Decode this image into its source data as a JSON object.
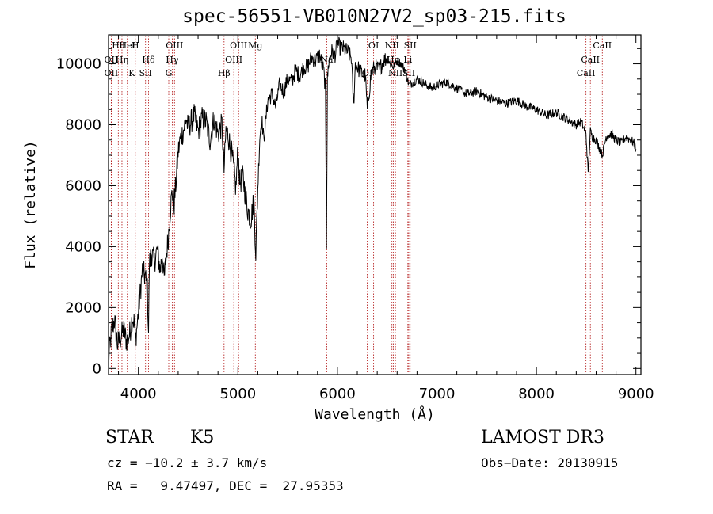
{
  "chart_data": {
    "type": "line",
    "title": "spec-56551-VB010N27V2_sp03-215.fits",
    "xlabel": "Wavelength (Å)",
    "ylabel": "Flux (relative)",
    "xlim": [
      3700,
      9050
    ],
    "ylim": [
      -200,
      10950
    ],
    "xticks": [
      4000,
      5000,
      6000,
      7000,
      8000,
      9000
    ],
    "xtick_labels": [
      "4000",
      "5000",
      "6000",
      "7000",
      "8000",
      "9000"
    ],
    "yticks": [
      0,
      2000,
      4000,
      6000,
      8000,
      10000
    ],
    "ytick_labels": [
      "0",
      "2000",
      "4000",
      "6000",
      "8000",
      "10000"
    ],
    "grid": false,
    "series": [
      {
        "name": "flux",
        "color": "#000000",
        "x": [
          3700,
          3730,
          3760,
          3790,
          3820,
          3850,
          3880,
          3910,
          3940,
          3960,
          3970,
          3990,
          4010,
          4040,
          4070,
          4090,
          4102,
          4110,
          4130,
          4160,
          4190,
          4220,
          4240,
          4260,
          4280,
          4300,
          4320,
          4340,
          4360,
          4380,
          4400,
          4420,
          4440,
          4460,
          4480,
          4500,
          4530,
          4560,
          4600,
          4640,
          4680,
          4720,
          4760,
          4800,
          4840,
          4861,
          4880,
          4900,
          4940,
          4980,
          5000,
          5020,
          5050,
          5080,
          5100,
          5130,
          5160,
          5180,
          5200,
          5220,
          5240,
          5260,
          5300,
          5340,
          5380,
          5420,
          5460,
          5500,
          5540,
          5580,
          5620,
          5660,
          5700,
          5740,
          5780,
          5820,
          5860,
          5880,
          5890,
          5895,
          5900,
          5910,
          5940,
          5980,
          6000,
          6030,
          6060,
          6100,
          6140,
          6163,
          6180,
          6200,
          6240,
          6280,
          6300,
          6340,
          6380,
          6420,
          6460,
          6500,
          6530,
          6563,
          6600,
          6640,
          6680,
          6720,
          6760,
          6800,
          6850,
          6900,
          6950,
          7000,
          7100,
          7200,
          7300,
          7400,
          7500,
          7600,
          7700,
          7800,
          7900,
          8000,
          8100,
          8200,
          8300,
          8400,
          8450,
          8498,
          8520,
          8542,
          8560,
          8600,
          8662,
          8700,
          8750,
          8800,
          8850,
          8900,
          8950,
          8980,
          9000
        ],
        "y": [
          300,
          1200,
          1600,
          800,
          1000,
          1300,
          900,
          1100,
          1700,
          1500,
          900,
          1500,
          2200,
          3200,
          3000,
          2600,
          1200,
          3400,
          3800,
          3500,
          3900,
          3200,
          3800,
          2900,
          3700,
          4300,
          5200,
          5800,
          5400,
          6200,
          7100,
          7500,
          7700,
          7900,
          8200,
          7900,
          8100,
          8300,
          7800,
          8200,
          8100,
          7500,
          8200,
          7700,
          8000,
          6500,
          7800,
          7700,
          7000,
          5900,
          7200,
          6100,
          6300,
          5600,
          5200,
          4900,
          5500,
          3800,
          5900,
          7600,
          8200,
          7500,
          8800,
          9000,
          8600,
          9300,
          9100,
          9500,
          9400,
          9800,
          9600,
          9900,
          9900,
          10200,
          10100,
          10300,
          9800,
          9200,
          4100,
          6800,
          9500,
          10000,
          10400,
          10300,
          10700,
          10500,
          10500,
          10400,
          10200,
          8600,
          10000,
          9900,
          9700,
          9600,
          8500,
          9700,
          9900,
          9800,
          10100,
          10200,
          10000,
          9900,
          10100,
          10000,
          9800,
          9300,
          9400,
          9500,
          9400,
          9300,
          9200,
          9300,
          9400,
          9200,
          9000,
          9100,
          8900,
          8800,
          8700,
          8800,
          8600,
          8500,
          8300,
          8400,
          8200,
          8000,
          8100,
          7700,
          6400,
          7800,
          7600,
          7500,
          7000,
          7600,
          7700,
          7500,
          7400,
          7600,
          7500,
          7400,
          7200
        ]
      }
    ],
    "line_markers": [
      {
        "label": "Hθ",
        "x": 3798
      },
      {
        "label": "OII",
        "x": 3727
      },
      {
        "label": "OII",
        "x": 3727
      },
      {
        "label": "HeI",
        "x": 3889
      },
      {
        "label": "Hη",
        "x": 3835
      },
      {
        "label": "K",
        "x": 3934
      },
      {
        "label": "H",
        "x": 3969
      },
      {
        "label": "Hδ",
        "x": 4102
      },
      {
        "label": "SII",
        "x": 4072
      },
      {
        "label": "OIII",
        "x": 4363
      },
      {
        "label": "Hγ",
        "x": 4340
      },
      {
        "label": "G",
        "x": 4305
      },
      {
        "label": "OIII",
        "x": 5007
      },
      {
        "label": "OIII",
        "x": 4959
      },
      {
        "label": "Hβ",
        "x": 4861
      },
      {
        "label": "Mg",
        "x": 5175
      },
      {
        "label": "Na",
        "x": 5893
      },
      {
        "label": "OI",
        "x": 6300
      },
      {
        "label": "OI",
        "x": 6364
      },
      {
        "label": "Hα",
        "x": 6563
      },
      {
        "label": "SII",
        "x": 6717
      },
      {
        "label": "NII",
        "x": 6548
      },
      {
        "label": "Li",
        "x": 6708
      },
      {
        "label": "NII",
        "x": 6583
      },
      {
        "label": "SII",
        "x": 6731
      },
      {
        "label": "CaII",
        "x": 8542
      },
      {
        "label": "CaII",
        "x": 8498
      },
      {
        "label": "CaII",
        "x": 8662
      }
    ]
  },
  "info": {
    "object_class": "STAR",
    "subclass": "K5",
    "survey": "LAMOST DR3",
    "cz_text": "cz = −10.2 ± 3.7 km/s",
    "obs_date_text": "Obs−Date: 20130915",
    "radec_text": "RA =   9.47497, DEC =  27.95353"
  },
  "colors": {
    "line": "#000000",
    "marker": "#b01010",
    "background": "#ffffff"
  }
}
